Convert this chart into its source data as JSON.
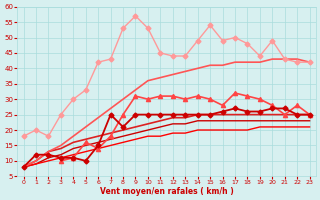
{
  "x": [
    0,
    1,
    2,
    3,
    4,
    5,
    6,
    7,
    8,
    9,
    10,
    11,
    12,
    13,
    14,
    15,
    16,
    17,
    18,
    19,
    20,
    21,
    22,
    23
  ],
  "lines": [
    {
      "color": "#ff9999",
      "marker": "D",
      "markersize": 2.5,
      "linewidth": 1.0,
      "y": [
        18,
        20,
        18,
        25,
        30,
        33,
        42,
        43,
        53,
        57,
        53,
        45,
        44,
        44,
        49,
        54,
        49,
        50,
        48,
        44,
        49,
        43,
        42,
        42
      ]
    },
    {
      "color": "#ff6666",
      "marker": "D",
      "markersize": 2.5,
      "linewidth": 1.0,
      "y": [
        null,
        null,
        null,
        null,
        null,
        null,
        null,
        null,
        null,
        null,
        null,
        null,
        null,
        null,
        null,
        null,
        null,
        null,
        null,
        null,
        null,
        null,
        null,
        null
      ]
    },
    {
      "color": "#ff4444",
      "marker": "^",
      "markersize": 3,
      "linewidth": 1.2,
      "y": [
        null,
        null,
        null,
        10,
        11,
        16,
        14,
        18,
        25,
        31,
        30,
        31,
        31,
        30,
        31,
        30,
        28,
        32,
        31,
        30,
        28,
        25,
        28,
        25
      ]
    },
    {
      "color": "#cc0000",
      "marker": "D",
      "markersize": 2.5,
      "linewidth": 1.3,
      "y": [
        8,
        12,
        12,
        11,
        11,
        10,
        15,
        25,
        21,
        25,
        25,
        25,
        25,
        25,
        25,
        25,
        26,
        27,
        26,
        26,
        27,
        27,
        25,
        25
      ]
    },
    {
      "color": "#dd2222",
      "marker": null,
      "markersize": 0,
      "linewidth": 1.2,
      "y": [
        8,
        10,
        13,
        14,
        16,
        17,
        18,
        19,
        20,
        21,
        22,
        23,
        24,
        24,
        25,
        25,
        25,
        25,
        25,
        25,
        25,
        25,
        25,
        25
      ]
    },
    {
      "color": "#cc0000",
      "marker": null,
      "markersize": 0,
      "linewidth": 1.0,
      "y": [
        8,
        9,
        11,
        12,
        14,
        15,
        16,
        17,
        18,
        19,
        20,
        21,
        22,
        22,
        23,
        23,
        23,
        23,
        23,
        23,
        23,
        23,
        23,
        23
      ]
    },
    {
      "color": "#ff0000",
      "marker": null,
      "markersize": 0,
      "linewidth": 1.0,
      "y": [
        8,
        9,
        10,
        11,
        12,
        13,
        14,
        15,
        16,
        17,
        18,
        18,
        19,
        19,
        20,
        20,
        20,
        20,
        20,
        21,
        21,
        21,
        21,
        21
      ]
    },
    {
      "color": "#ff5555",
      "marker": null,
      "markersize": 0,
      "linewidth": 1.2,
      "y": [
        8,
        10,
        13,
        15,
        18,
        21,
        24,
        27,
        30,
        33,
        36,
        37,
        38,
        39,
        40,
        41,
        41,
        42,
        42,
        42,
        43,
        43,
        43,
        42
      ]
    }
  ],
  "ylim": [
    5,
    60
  ],
  "yticks": [
    5,
    10,
    15,
    20,
    25,
    30,
    35,
    40,
    45,
    50,
    55,
    60
  ],
  "xlim": [
    -0.5,
    23.5
  ],
  "xticks": [
    0,
    1,
    2,
    3,
    4,
    5,
    6,
    7,
    8,
    9,
    10,
    11,
    12,
    13,
    14,
    15,
    16,
    17,
    18,
    19,
    20,
    21,
    22,
    23
  ],
  "xlabel": "Vent moyen/en rafales ( km/h )",
  "bg_color": "#d7f0f0",
  "grid_color": "#aadddd",
  "title_color": "#cc0000",
  "arrow_color": "#cc2222"
}
